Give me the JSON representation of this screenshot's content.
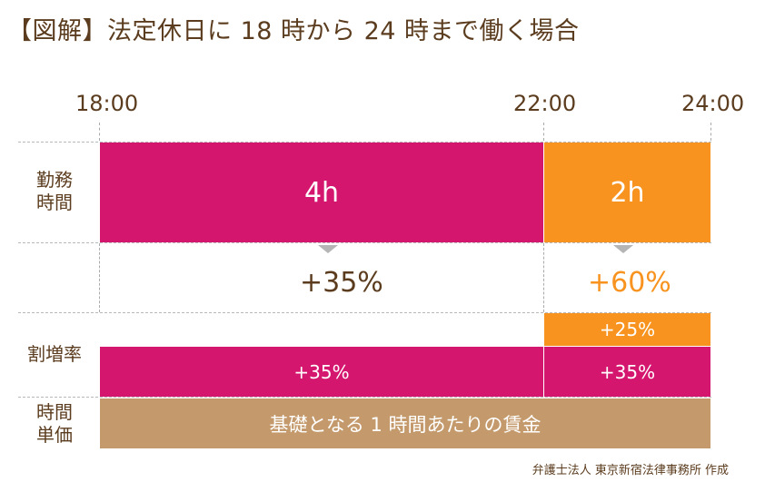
{
  "title": "【図解】法定休日に 18 時から 24 時まで働く場合",
  "time_labels": [
    "18:00",
    "22:00",
    "24:00"
  ],
  "rows": {
    "work_hours": "勤務\n時間",
    "rate": "割増率",
    "unit_price": "時間\n単価"
  },
  "bars": {
    "work_regular": "4h",
    "work_late": "2h",
    "total_regular": "+35%",
    "total_late": "+60%",
    "late_night_premium": "+25%",
    "holiday_premium_regular": "+35%",
    "holiday_premium_late": "+35%",
    "base_wage": "基礎となる 1 時間あたりの賃金"
  },
  "credit": "弁護士法人 東京新宿法律事務所 作成",
  "colors": {
    "magenta": "#d5166f",
    "orange": "#f7931e",
    "tan": "#c49a6c",
    "text": "#5b3c1e"
  }
}
